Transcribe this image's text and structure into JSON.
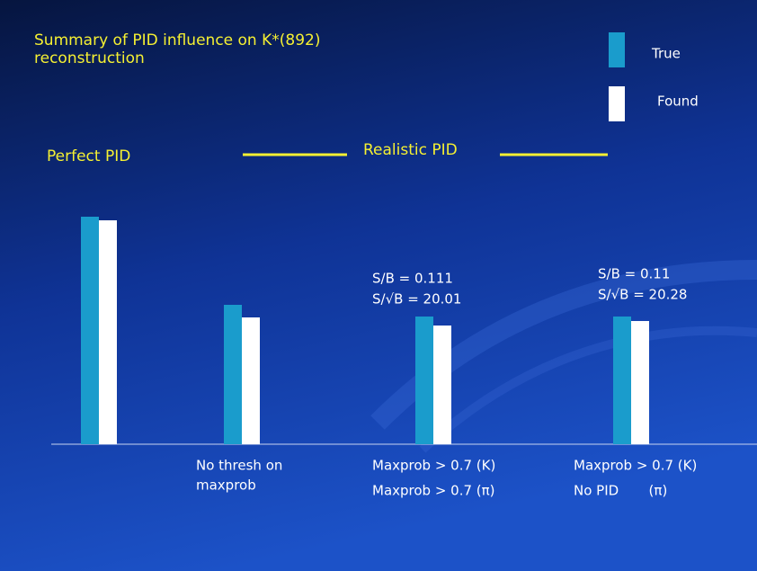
{
  "chart_data": {
    "type": "bar",
    "title": [
      "Summary of PID influence on K*(892)",
      "reconstruction"
    ],
    "group_labels": [
      "Perfect PID",
      "Realistic PID"
    ],
    "categories": [
      null,
      [
        "No thresh on",
        "maxprob"
      ],
      [
        "Maxprob > 0.7 (K)",
        "Maxprob > 0.7 (π)"
      ],
      [
        "Maxprob > 0.7 (K)",
        "No PID       (π)"
      ]
    ],
    "annotations": [
      null,
      null,
      [
        "S/B = 0.111",
        "S/√B = 20.01"
      ],
      [
        "S/B = 0.11",
        "S/√B = 20.28"
      ]
    ],
    "series": [
      {
        "name": "True",
        "color": "#1a9ccc",
        "values": [
          253,
          155,
          142,
          142
        ]
      },
      {
        "name": "Found",
        "color": "#ffffff",
        "values": [
          249,
          141,
          132,
          137
        ]
      }
    ],
    "ylim": [
      0,
      300
    ]
  }
}
